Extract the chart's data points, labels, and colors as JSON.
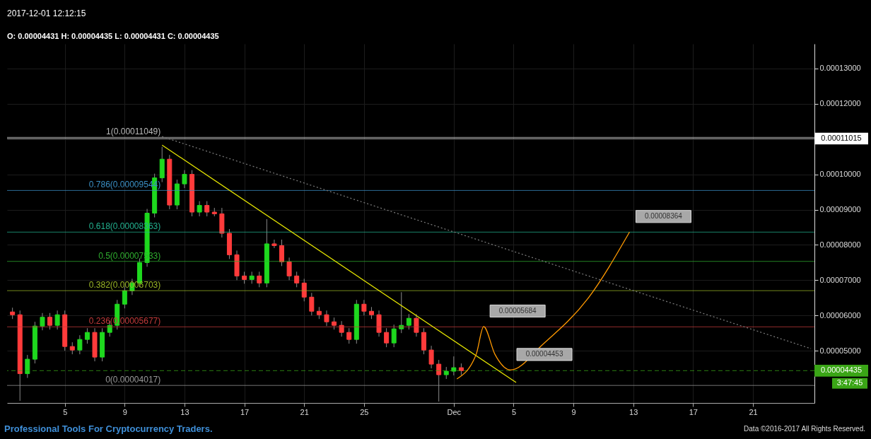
{
  "chart_data": {
    "type": "candlestick",
    "title": "2017-12-01 12:12:15",
    "subtitle": "O: 0.00004431 H: 0.00004435 L: 0.00004431 C: 0.00004435",
    "x": [
      "2017-11-01T12:00",
      "2017-11-02T00:00",
      "2017-11-02T12:00",
      "2017-11-03T00:00",
      "2017-11-03T12:00",
      "2017-11-04T00:00",
      "2017-11-04T12:00",
      "2017-11-05T00:00",
      "2017-11-05T12:00",
      "2017-11-06T00:00",
      "2017-11-06T12:00",
      "2017-11-07T00:00",
      "2017-11-07T12:00",
      "2017-11-08T00:00",
      "2017-11-08T12:00",
      "2017-11-09T00:00",
      "2017-11-09T12:00",
      "2017-11-10T00:00",
      "2017-11-10T12:00",
      "2017-11-11T00:00",
      "2017-11-11T12:00",
      "2017-11-12T00:00",
      "2017-11-12T12:00",
      "2017-11-13T00:00",
      "2017-11-13T12:00",
      "2017-11-14T00:00",
      "2017-11-14T12:00",
      "2017-11-15T00:00",
      "2017-11-15T12:00",
      "2017-11-16T00:00",
      "2017-11-16T12:00",
      "2017-11-17T00:00",
      "2017-11-17T12:00",
      "2017-11-18T00:00",
      "2017-11-18T12:00",
      "2017-11-19T00:00",
      "2017-11-19T12:00",
      "2017-11-20T00:00",
      "2017-11-20T12:00",
      "2017-11-21T00:00",
      "2017-11-21T12:00",
      "2017-11-22T00:00",
      "2017-11-22T12:00",
      "2017-11-23T00:00",
      "2017-11-23T12:00",
      "2017-11-24T00:00",
      "2017-11-24T12:00",
      "2017-11-25T00:00",
      "2017-11-25T12:00",
      "2017-11-26T00:00",
      "2017-11-26T12:00",
      "2017-11-27T00:00",
      "2017-11-27T12:00",
      "2017-11-28T00:00",
      "2017-11-28T12:00",
      "2017-11-29T00:00",
      "2017-11-29T12:00",
      "2017-11-30T00:00",
      "2017-11-30T12:00",
      "2017-12-01T00:00",
      "2017-12-01T12:00"
    ],
    "ohlc": [
      [
        6.1e-05,
        6.22e-05,
        5.9e-05,
        6.02e-05
      ],
      [
        6.02e-05,
        6.14e-05,
        3.58e-05,
        4.35e-05
      ],
      [
        4.35e-05,
        4.88e-05,
        4.23e-05,
        4.76e-05
      ],
      [
        4.76e-05,
        5.82e-05,
        4.64e-05,
        5.7e-05
      ],
      [
        5.7e-05,
        6.07e-05,
        5.58e-05,
        5.95e-05
      ],
      [
        5.95e-05,
        6.07e-05,
        5.6e-05,
        5.72e-05
      ],
      [
        5.72e-05,
        6.14e-05,
        5.6e-05,
        6.02e-05
      ],
      [
        6.02e-05,
        6.14e-05,
        5e-05,
        5.12e-05
      ],
      [
        5.12e-05,
        5.24e-05,
        4.9e-05,
        5.02e-05
      ],
      [
        5.02e-05,
        5.44e-05,
        4.9e-05,
        5.32e-05
      ],
      [
        5.32e-05,
        5.64e-05,
        5.2e-05,
        5.52e-05
      ],
      [
        5.52e-05,
        5.64e-05,
        4.7e-05,
        4.82e-05
      ],
      [
        4.82e-05,
        5.64e-05,
        4.7e-05,
        5.52e-05
      ],
      [
        5.52e-05,
        5.84e-05,
        5.4e-05,
        5.72e-05
      ],
      [
        5.72e-05,
        6.44e-05,
        5.6e-05,
        6.32e-05
      ],
      [
        6.32e-05,
        6.82e-05,
        6.2e-05,
        6.7e-05
      ],
      [
        6.7e-05,
        7.04e-05,
        6.58e-05,
        6.92e-05
      ],
      [
        6.92e-05,
        7.62e-05,
        6.8e-05,
        7.5e-05
      ],
      [
        7.5e-05,
        9.02e-05,
        7.38e-05,
        8.9e-05
      ],
      [
        8.9e-05,
        0.0001002,
        8.78e-05,
        9.9e-05
      ],
      [
        9.9e-05,
        0.0001078,
        9.78e-05,
        0.0001043
      ],
      [
        0.0001043,
        0.0001055,
        9.01e-05,
        9.13e-05
      ],
      [
        9.13e-05,
        9.85e-05,
        9.01e-05,
        9.73e-05
      ],
      [
        9.73e-05,
        0.0001012,
        9.61e-05,
        0.0001
      ],
      [
        0.0001,
        0.0001012,
        8.81e-05,
        8.93e-05
      ],
      [
        8.93e-05,
        9.24e-05,
        8.81e-05,
        9.12e-05
      ],
      [
        9.12e-05,
        9.24e-05,
        8.81e-05,
        8.93e-05
      ],
      [
        8.93e-05,
        9.05e-05,
        8.81e-05,
        8.88e-05
      ],
      [
        8.88e-05,
        9.05e-05,
        8.21e-05,
        8.33e-05
      ],
      [
        8.33e-05,
        8.45e-05,
        7.6e-05,
        7.72e-05
      ],
      [
        7.72e-05,
        7.84e-05,
        7e-05,
        7.12e-05
      ],
      [
        7.12e-05,
        7.24e-05,
        6.9e-05,
        7.02e-05
      ],
      [
        7.02e-05,
        7.24e-05,
        6.9e-05,
        7.12e-05
      ],
      [
        7.12e-05,
        7.24e-05,
        6.8e-05,
        6.92e-05
      ],
      [
        6.92e-05,
        8.73e-05,
        6.8e-05,
        8.03e-05
      ],
      [
        8.03e-05,
        8.15e-05,
        7.91e-05,
        7.98e-05
      ],
      [
        7.98e-05,
        8.15e-05,
        7.4e-05,
        7.52e-05
      ],
      [
        7.52e-05,
        7.64e-05,
        7e-05,
        7.12e-05
      ],
      [
        7.12e-05,
        7.24e-05,
        6.8e-05,
        6.92e-05
      ],
      [
        6.92e-05,
        7.04e-05,
        6.4e-05,
        6.52e-05
      ],
      [
        6.52e-05,
        6.64e-05,
        6e-05,
        6.12e-05
      ],
      [
        6.12e-05,
        6.24e-05,
        5.9e-05,
        6.02e-05
      ],
      [
        6.02e-05,
        6.14e-05,
        5.7e-05,
        5.82e-05
      ],
      [
        5.82e-05,
        5.94e-05,
        5.6e-05,
        5.72e-05
      ],
      [
        5.72e-05,
        5.84e-05,
        5.4e-05,
        5.52e-05
      ],
      [
        5.52e-05,
        5.64e-05,
        5.2e-05,
        5.32e-05
      ],
      [
        5.32e-05,
        6.44e-05,
        5.2e-05,
        6.32e-05
      ],
      [
        6.32e-05,
        6.44e-05,
        6e-05,
        6.12e-05
      ],
      [
        6.12e-05,
        6.24e-05,
        5.9e-05,
        6.02e-05
      ],
      [
        6.02e-05,
        6.14e-05,
        5.4e-05,
        5.52e-05
      ],
      [
        5.52e-05,
        5.64e-05,
        5.1e-05,
        5.22e-05
      ],
      [
        5.22e-05,
        5.74e-05,
        5.1e-05,
        5.62e-05
      ],
      [
        5.62e-05,
        6.66e-05,
        5.5e-05,
        5.72e-05
      ],
      [
        5.72e-05,
        6.04e-05,
        5.6e-05,
        5.92e-05
      ],
      [
        5.92e-05,
        6.04e-05,
        5.4e-05,
        5.52e-05
      ],
      [
        5.52e-05,
        5.64e-05,
        4.9e-05,
        5.02e-05
      ],
      [
        5.02e-05,
        5.14e-05,
        4.5e-05,
        4.62e-05
      ],
      [
        4.62e-05,
        4.74e-05,
        3.56e-05,
        4.32e-05
      ],
      [
        4.32e-05,
        4.54e-05,
        4.2e-05,
        4.42e-05
      ],
      [
        4.42e-05,
        4.84e-05,
        4.3e-05,
        4.52e-05
      ],
      [
        4.52e-05,
        4.64e-05,
        4.31e-05,
        4.435e-05
      ]
    ],
    "colors": [
      "#ff3b3b",
      "#ff3b3b",
      "#1ed81e",
      "#1ed81e",
      "#1ed81e",
      "#ff3b3b",
      "#1ed81e",
      "#ff3b3b",
      "#ff3b3b",
      "#1ed81e",
      "#1ed81e",
      "#ff3b3b",
      "#1ed81e",
      "#1ed81e",
      "#1ed81e",
      "#1ed81e",
      "#1ed81e",
      "#1ed81e",
      "#1ed81e",
      "#1ed81e",
      "#1ed81e",
      "#ff3b3b",
      "#1ed81e",
      "#1ed81e",
      "#ff3b3b",
      "#1ed81e",
      "#ff3b3b",
      "#ff3b3b",
      "#ff3b3b",
      "#ff3b3b",
      "#ff3b3b",
      "#ff3b3b",
      "#1ed81e",
      "#ff3b3b",
      "#1ed81e",
      "#ff3b3b",
      "#ff3b3b",
      "#ff3b3b",
      "#ff3b3b",
      "#ff3b3b",
      "#ff3b3b",
      "#ff3b3b",
      "#ff3b3b",
      "#ff3b3b",
      "#ff3b3b",
      "#ff3b3b",
      "#1ed81e",
      "#ff3b3b",
      "#ff3b3b",
      "#ff3b3b",
      "#ff3b3b",
      "#1ed81e",
      "#1ed81e",
      "#1ed81e",
      "#ff3b3b",
      "#ff3b3b",
      "#ff3b3b",
      "#ff3b3b",
      "#1ed81e",
      "#1ed81e",
      "#ff3b3b"
    ],
    "series": [
      {
        "type": "line",
        "color": "#e6e600",
        "x": [
          "2017-11-11T12:00",
          "2017-12-05T04:00"
        ],
        "values": [
          0.0001083,
          4.1e-05
        ]
      },
      {
        "type": "line",
        "color": "#777777",
        "line_style": "dotted",
        "x": [
          "2017-11-11T12:00",
          "2017-12-24T21:00"
        ],
        "values": [
          0.0001107,
          5.06e-05
        ]
      },
      {
        "type": "line",
        "color": "#ff9900",
        "x": [
          "2017-12-01T05:00",
          "2017-12-02T12:00",
          "2017-12-03T00:00",
          "2017-12-03T18:00",
          "2017-12-04T19:00",
          "2017-12-07T00:00",
          "2017-12-10T00:00",
          "2017-12-12T18:00"
        ],
        "values": [
          4.2e-05,
          4.9e-05,
          5.684e-05,
          4.9e-05,
          4.453e-05,
          5.2e-05,
          6.5e-05,
          8.364e-05
        ]
      }
    ],
    "xlim": [
      "2017-11-01T09:00",
      "2017-12-24T21:00"
    ],
    "xticks": [
      {
        "value": "2017-11-05",
        "label": "5"
      },
      {
        "value": "2017-11-09",
        "label": "9"
      },
      {
        "value": "2017-11-13",
        "label": "13"
      },
      {
        "value": "2017-11-17",
        "label": "17"
      },
      {
        "value": "2017-11-21",
        "label": "21"
      },
      {
        "value": "2017-11-25",
        "label": "25"
      },
      {
        "value": "2017-12-01",
        "label": "Dec"
      },
      {
        "value": "2017-12-05",
        "label": "5"
      },
      {
        "value": "2017-12-09",
        "label": "9"
      },
      {
        "value": "2017-12-13",
        "label": "13"
      },
      {
        "value": "2017-12-17",
        "label": "17"
      },
      {
        "value": "2017-12-21",
        "label": "21"
      }
    ],
    "ylim": [
      3.52e-05,
      0.000137
    ],
    "yticks": [
      {
        "value": 5e-05,
        "label": "0.00005000"
      },
      {
        "value": 6e-05,
        "label": "0.00006000"
      },
      {
        "value": 7e-05,
        "label": "0.00007000"
      },
      {
        "value": 8e-05,
        "label": "0.00008000"
      },
      {
        "value": 9e-05,
        "label": "0.00009000"
      },
      {
        "value": 0.0001,
        "label": "0.00010000"
      },
      {
        "value": 0.00011,
        "label": null
      },
      {
        "value": 0.00012,
        "label": "0.00012000"
      },
      {
        "value": 0.00013,
        "label": "0.00013000"
      }
    ],
    "grid": true,
    "ref_lines": [
      {
        "axis": "y",
        "value": 0.00011049,
        "label": "1(0.00011049)",
        "color": "#bbbbbb"
      },
      {
        "axis": "y",
        "value": 9.544e-05,
        "label": "0.786(0.00009544)",
        "color": "#3a8fc4"
      },
      {
        "axis": "y",
        "value": 8.363e-05,
        "label": "0.618(0.00008363)",
        "color": "#22b08e"
      },
      {
        "axis": "y",
        "value": 7.533e-05,
        "label": "0.5(0.00007533)",
        "color": "#2fae2f"
      },
      {
        "axis": "y",
        "value": 6.703e-05,
        "label": "0.382(0.00006703)",
        "color": "#9ab526"
      },
      {
        "axis": "y",
        "value": 5.677e-05,
        "label": "0.236(0.00005677)",
        "color": "#c23a3a"
      },
      {
        "axis": "y",
        "value": 4.017e-05,
        "label": "0(0.00004017)",
        "color": "#999999"
      },
      {
        "axis": "y",
        "value": 0.00011015,
        "color": "#ffffff"
      },
      {
        "axis": "y",
        "value": 4.435e-05,
        "color": "#3aa516",
        "line_style": "dashed"
      }
    ],
    "annotations": [
      "Professional Tools For Cryptocurrency Traders.",
      "Data ©2016-2017 All Rights Reserved.",
      "3:47:45",
      "0.00011015",
      "0.00004435",
      {
        "text": "0.00005684",
        "x": "2017-12-03T00:00",
        "y": 5.684e-05
      },
      {
        "text": "0.00004453",
        "x": "2017-12-04T19:00",
        "y": 4.453e-05
      },
      {
        "text": "0.00008364",
        "x": "2017-12-12T18:00",
        "y": 8.364e-05
      }
    ]
  }
}
